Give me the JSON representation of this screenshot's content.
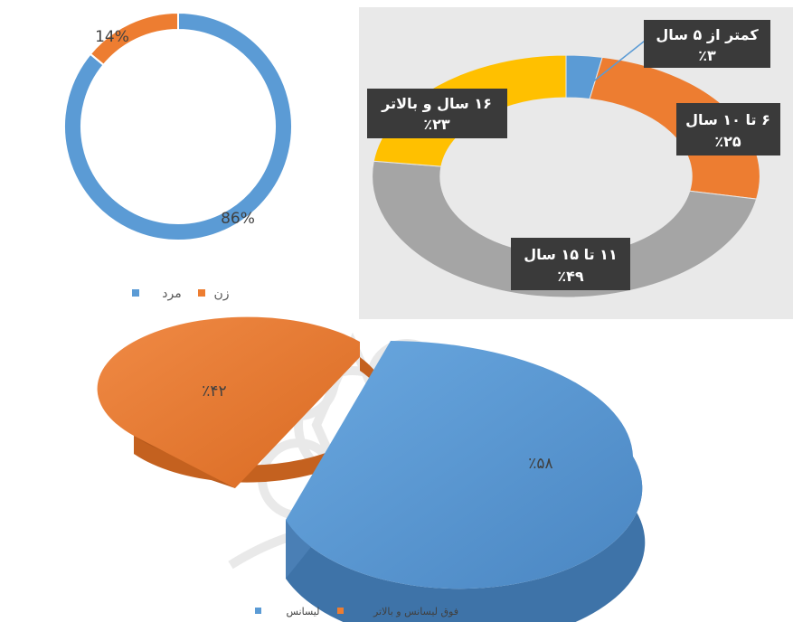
{
  "colors": {
    "blue": "#5b9bd5",
    "orange": "#ed7d31",
    "gray": "#a5a5a5",
    "yellow": "#ffc000",
    "dark_callout": "#3a3a3a",
    "chart2_bg": "#e9e9e9"
  },
  "chart_data": [
    {
      "type": "pie",
      "variant": "donut",
      "series": [
        {
          "name": "مرد",
          "value": 86,
          "label": "86%",
          "color": "#5b9bd5"
        },
        {
          "name": "زن",
          "value": 14,
          "label": "14%",
          "color": "#ed7d31"
        }
      ],
      "legend": {
        "position": "bottom",
        "items": [
          "مرد",
          "زن"
        ]
      }
    },
    {
      "type": "pie",
      "variant": "donut",
      "series": [
        {
          "name": "کمتر از ۵ سال",
          "value": 3,
          "label": "٪۳",
          "color": "#5b9bd5"
        },
        {
          "name": "۶ تا ۱۰ سال",
          "value": 25,
          "label": "٪۲۵",
          "color": "#ed7d31"
        },
        {
          "name": "۱۱ تا ۱۵ سال",
          "value": 49,
          "label": "٪۴۹",
          "color": "#a5a5a5"
        },
        {
          "name": "۱۶ سال و بالاتر",
          "value": 23,
          "label": "٪۲۳",
          "color": "#ffc000"
        }
      ]
    },
    {
      "type": "pie",
      "variant": "3d-exploded",
      "series": [
        {
          "name": "لیسانس",
          "value": 58,
          "label": "٪۵۸",
          "color": "#5b9bd5"
        },
        {
          "name": "فوق لیسانس و بالاتر",
          "value": 42,
          "label": "٪۴۲",
          "color": "#ed7d31"
        }
      ],
      "legend": {
        "position": "bottom",
        "items": [
          "لیسانس",
          "فوق لیسانس و بالاتر"
        ]
      }
    }
  ]
}
